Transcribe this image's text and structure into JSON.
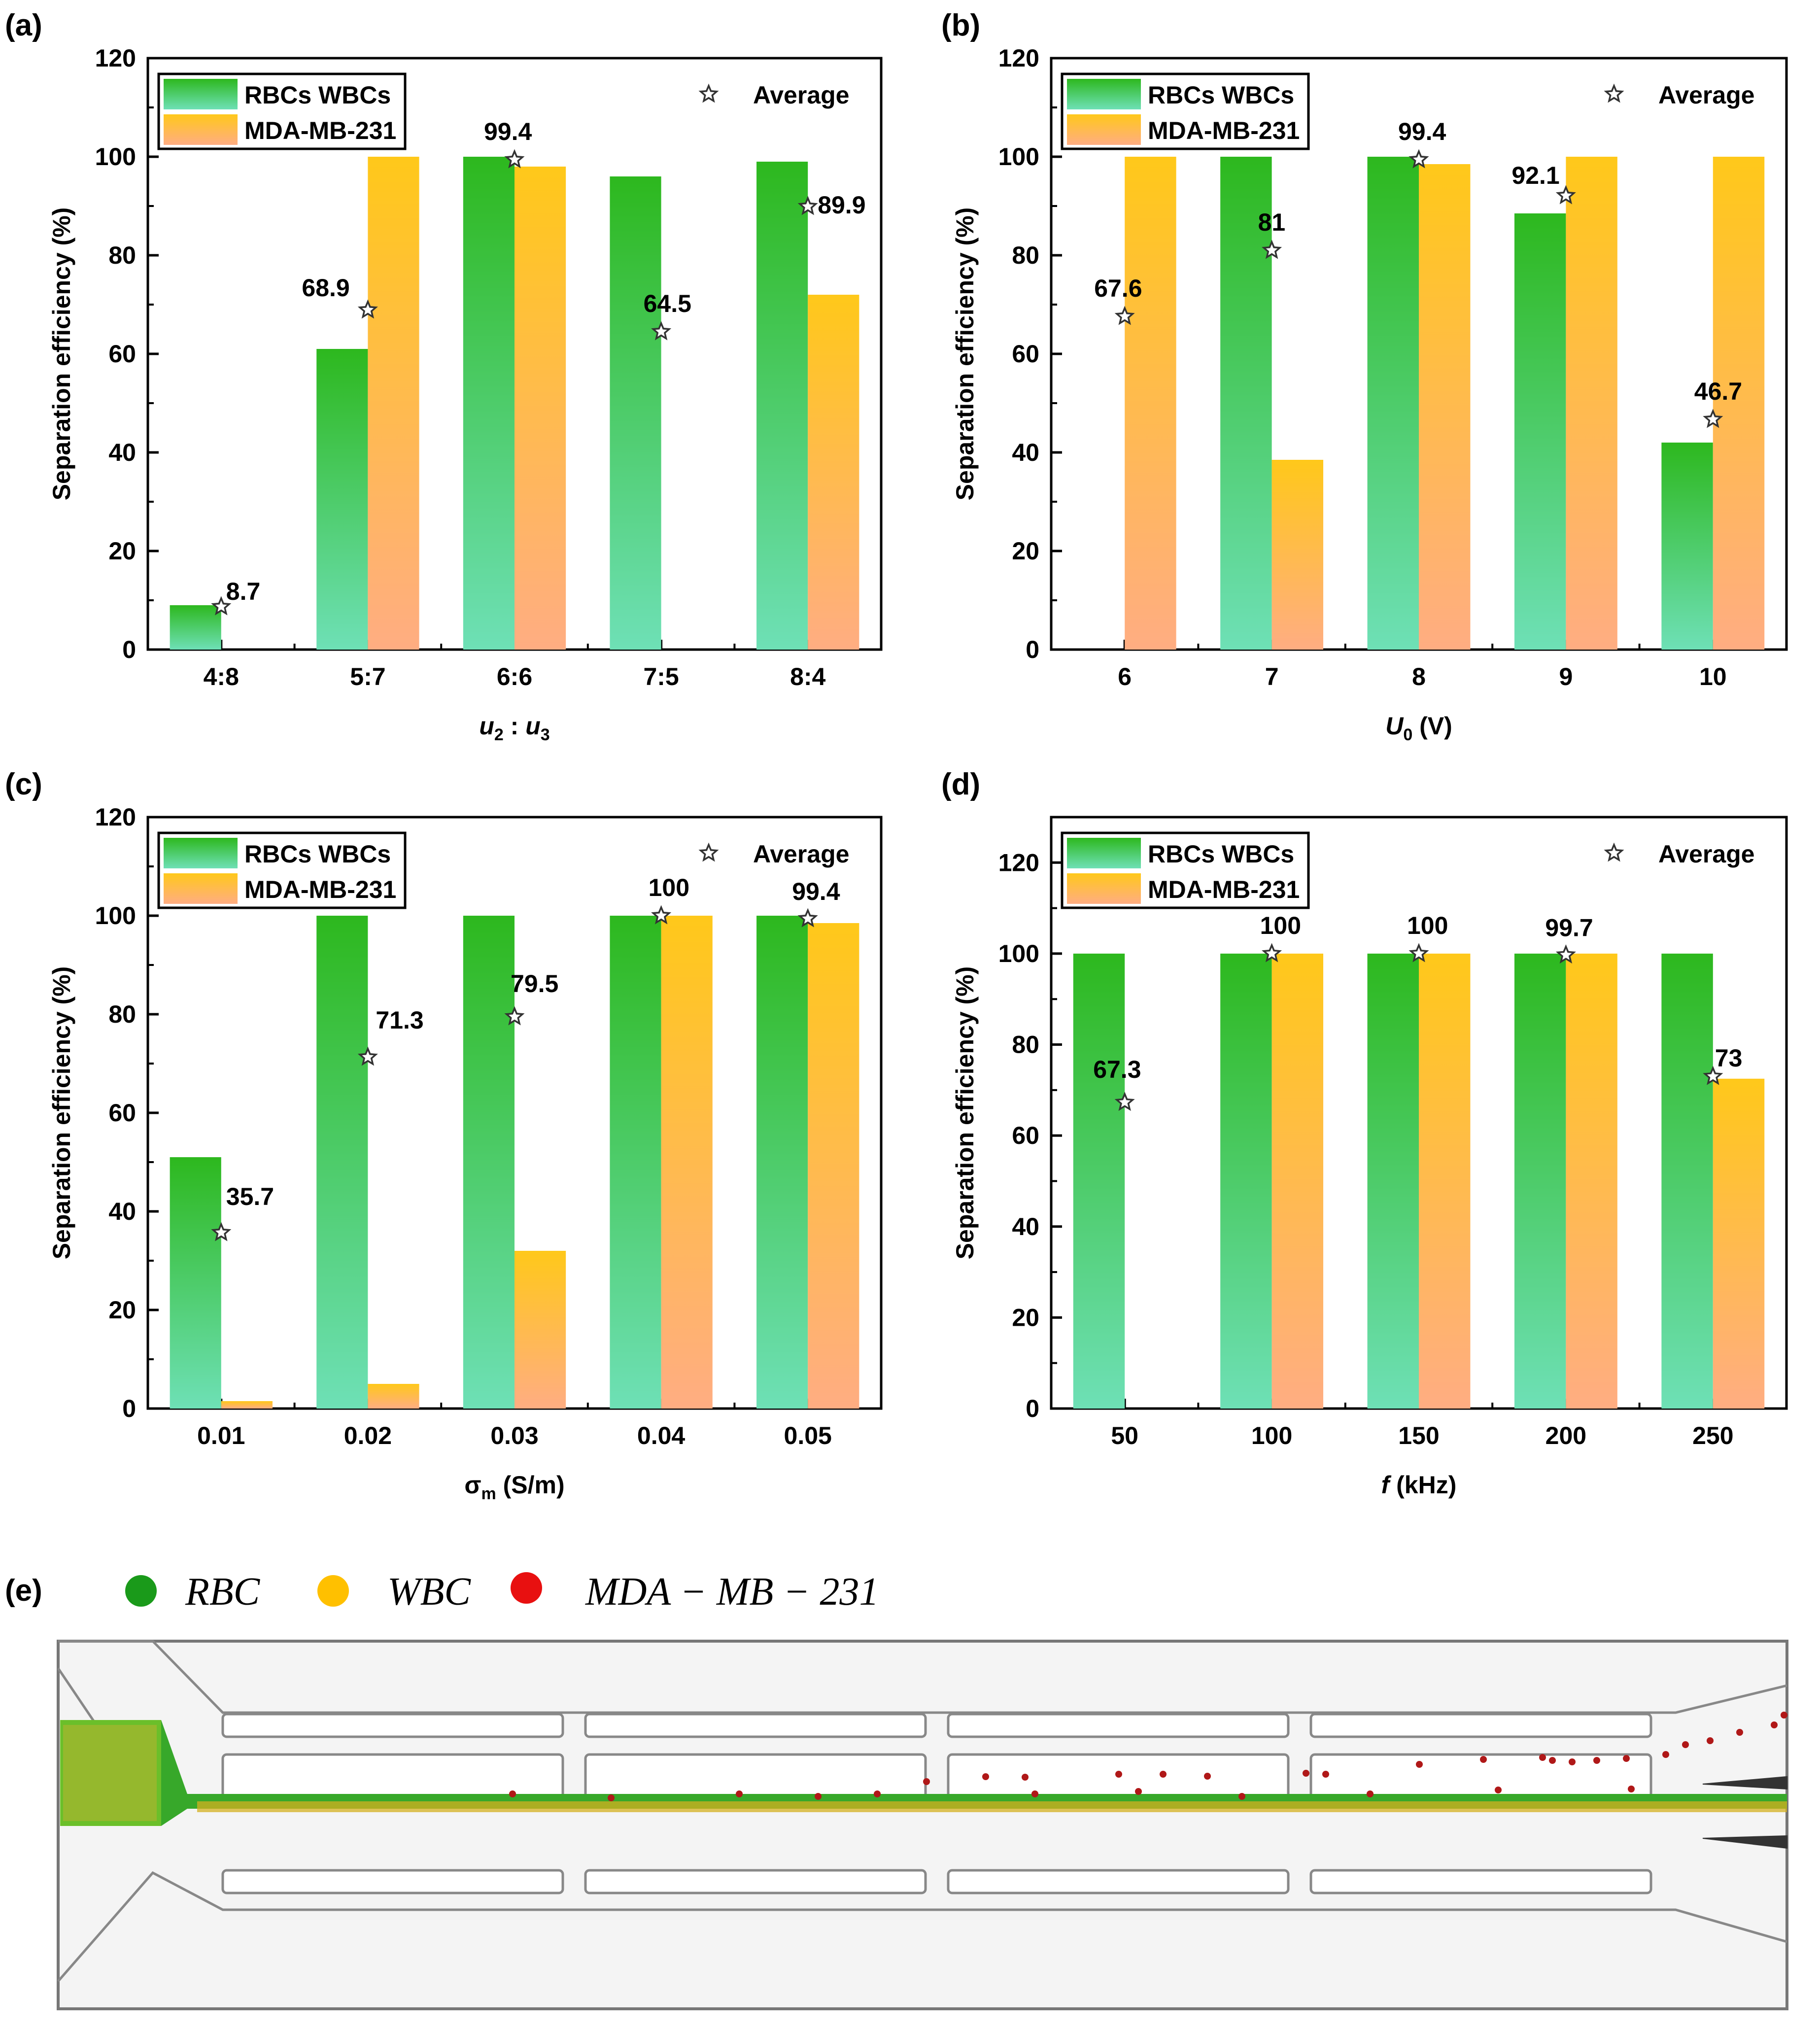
{
  "colors": {
    "green_top": "#2db81e",
    "green_bottom": "#6ee0b6",
    "orange_top": "#ffc81a",
    "orange_bottom": "#ffad82",
    "rbc": "#1a9a1a",
    "wbc": "#ffc000",
    "mda": "#e81010"
  },
  "legend": {
    "rbc_wbc": "RBCs WBCs",
    "mda": "MDA-MB-231",
    "average": "Average",
    "star_icon": "star-icon"
  },
  "chart_data": [
    {
      "id": "a",
      "panel_label": "(a)",
      "type": "bar",
      "ylabel": "Separation efficiency (%)",
      "xlabel_parts": [
        "u",
        "2",
        " : ",
        "u",
        "3"
      ],
      "ylim": [
        0,
        120
      ],
      "yticks": [
        "0",
        "20",
        "40",
        "60",
        "80",
        "100",
        "120"
      ],
      "categories": [
        "4:8",
        "5:7",
        "6:6",
        "7:5",
        "8:4"
      ],
      "series": [
        {
          "name": "RBCs WBCs",
          "values": [
            9,
            61,
            100,
            96,
            99
          ]
        },
        {
          "name": "MDA-MB-231",
          "values": [
            0,
            100,
            98,
            0,
            72
          ]
        }
      ],
      "average": [
        8.7,
        68.9,
        99.4,
        64.5,
        89.9
      ],
      "average_labels": [
        "8.7",
        "68.9",
        "99.4",
        "64.5",
        "89.9"
      ]
    },
    {
      "id": "b",
      "panel_label": "(b)",
      "type": "bar",
      "ylabel": "Separation efficiency (%)",
      "xlabel_parts": [
        "U",
        "0",
        " (V)"
      ],
      "ylim": [
        0,
        120
      ],
      "yticks": [
        "0",
        "20",
        "40",
        "60",
        "80",
        "100",
        "120"
      ],
      "categories": [
        "6",
        "7",
        "8",
        "9",
        "10"
      ],
      "series": [
        {
          "name": "RBCs WBCs",
          "values": [
            0,
            100,
            100,
            88.5,
            42
          ]
        },
        {
          "name": "MDA-MB-231",
          "values": [
            100,
            38.5,
            98.5,
            100,
            100
          ]
        }
      ],
      "average": [
        67.6,
        81,
        99.4,
        92.1,
        46.7
      ],
      "average_labels": [
        "67.6",
        "81",
        "99.4",
        "92.1",
        "46.7"
      ]
    },
    {
      "id": "c",
      "panel_label": "(c)",
      "type": "bar",
      "ylabel": "Separation efficiency (%)",
      "xlabel_parts": [
        "σ",
        "m",
        " (S/m)"
      ],
      "ylim": [
        0,
        120
      ],
      "yticks": [
        "0",
        "20",
        "40",
        "60",
        "80",
        "100",
        "120"
      ],
      "categories": [
        "0.01",
        "0.02",
        "0.03",
        "0.04",
        "0.05"
      ],
      "series": [
        {
          "name": "RBCs WBCs",
          "values": [
            51,
            100,
            100,
            100,
            100
          ]
        },
        {
          "name": "MDA-MB-231",
          "values": [
            1.5,
            5,
            32,
            100,
            98.5
          ]
        }
      ],
      "average": [
        35.7,
        71.3,
        79.5,
        100,
        99.4
      ],
      "average_labels": [
        "35.7",
        "71.3",
        "79.5",
        "100",
        "99.4"
      ]
    },
    {
      "id": "d",
      "panel_label": "(d)",
      "type": "bar",
      "ylabel": "Separation efficiency (%)",
      "xlabel_parts": [
        "f",
        "",
        " (kHz)"
      ],
      "ylim": [
        0,
        130
      ],
      "yticks": [
        "0",
        "20",
        "40",
        "60",
        "80",
        "100",
        "120"
      ],
      "categories": [
        "50",
        "100",
        "150",
        "200",
        "250"
      ],
      "series": [
        {
          "name": "RBCs WBCs",
          "values": [
            100,
            100,
            100,
            100,
            100
          ]
        },
        {
          "name": "MDA-MB-231",
          "values": [
            0,
            100,
            100,
            100,
            72.5
          ]
        }
      ],
      "average": [
        67.3,
        100,
        100,
        99.7,
        73
      ],
      "average_labels": [
        "67.3",
        "100",
        "100",
        "99.7",
        "73"
      ]
    }
  ],
  "panel_e": {
    "panel_label": "(e)",
    "legend": [
      "RBC",
      "WBC",
      "MDA − MB − 231"
    ]
  }
}
